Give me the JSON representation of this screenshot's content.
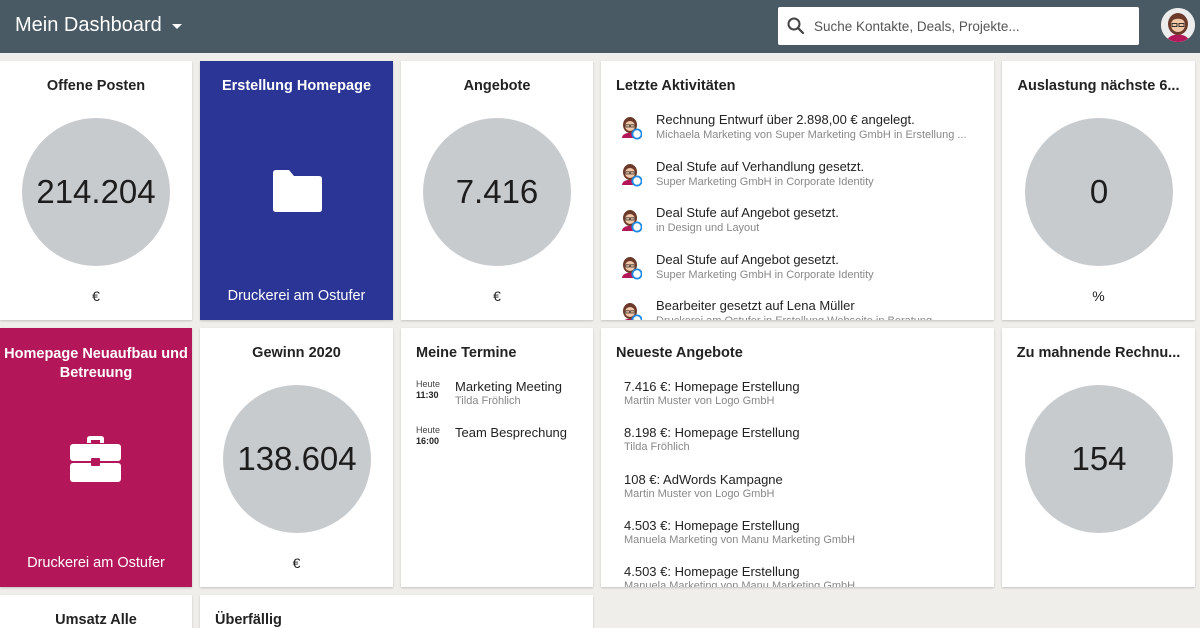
{
  "header": {
    "title": "Mein Dashboard",
    "search_placeholder": "Suche Kontakte, Deals, Projekte..."
  },
  "colors": {
    "header_bg": "#4a5a64",
    "blue_tile": "#2b3595",
    "magenta_tile": "#b3175a",
    "circle": "#c8cbce"
  },
  "offene_posten": {
    "title": "Offene Posten",
    "value": "214.204",
    "unit": "€"
  },
  "erstellung_homepage": {
    "title": "Erstellung Homepage",
    "subtitle": "Druckerei am Ostufer",
    "icon": "folder-icon"
  },
  "angebote": {
    "title": "Angebote",
    "value": "7.416",
    "unit": "€"
  },
  "letzte_aktivitaeten": {
    "title": "Letzte Aktivitäten",
    "items": [
      {
        "text": "Rechnung Entwurf über 2.898,00 € angelegt.",
        "meta": "Michaela Marketing von Super Marketing GmbH in Erstellung ..."
      },
      {
        "text": "Deal Stufe auf Verhandlung gesetzt.",
        "meta": "Super Marketing GmbH in Corporate Identity"
      },
      {
        "text": "Deal Stufe auf Angebot gesetzt.",
        "meta": "in Design und Layout"
      },
      {
        "text": "Deal Stufe auf Angebot gesetzt.",
        "meta": "Super Marketing GmbH in Corporate Identity"
      },
      {
        "text": "Bearbeiter gesetzt auf Lena Müller",
        "meta": "Druckerei am Ostufer in Erstellung Webseite in Beratung"
      }
    ]
  },
  "auslastung": {
    "title": "Auslastung nächste 6...",
    "value": "0",
    "unit": "%"
  },
  "homepage_neuaufbau": {
    "title": "Homepage Neuaufbau und Betreuung",
    "subtitle": "Druckerei am Ostufer",
    "icon": "briefcase-icon"
  },
  "gewinn": {
    "title": "Gewinn 2020",
    "value": "138.604",
    "unit": "€"
  },
  "termine": {
    "title": "Meine Termine",
    "items": [
      {
        "day": "Heute",
        "time": "11:30",
        "title": "Marketing Meeting",
        "who": "Tilda Fröhlich"
      },
      {
        "day": "Heute",
        "time": "16:00",
        "title": "Team Besprechung",
        "who": ""
      }
    ]
  },
  "neueste_angebote": {
    "title": "Neueste Angebote",
    "items": [
      {
        "title": "7.416 €: Homepage Erstellung",
        "who": "Martin Muster von Logo GmbH"
      },
      {
        "title": "8.198 €: Homepage Erstellung",
        "who": "Tilda Fröhlich"
      },
      {
        "title": "108 €: AdWords Kampagne",
        "who": "Martin Muster von Logo GmbH"
      },
      {
        "title": "4.503 €: Homepage Erstellung",
        "who": "Manuela Marketing von Manu Marketing GmbH"
      },
      {
        "title": "4.503 €: Homepage Erstellung",
        "who": "Manuela Marketing von Manu Marketing GmbH"
      }
    ]
  },
  "zu_mahnende": {
    "title": "Zu mahnende Rechnu...",
    "value": "154"
  },
  "umsatz_alle": {
    "title": "Umsatz Alle"
  },
  "ueberfaellig": {
    "title": "Überfällig"
  }
}
